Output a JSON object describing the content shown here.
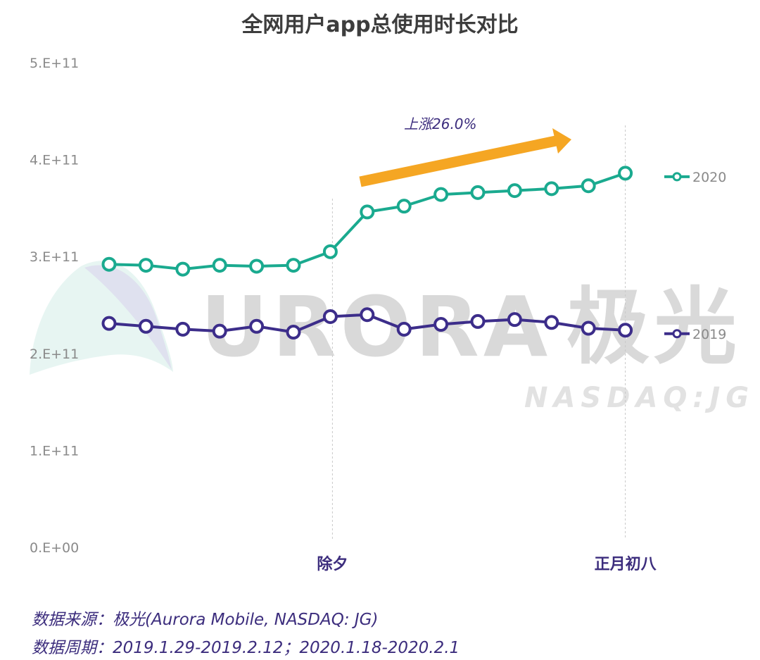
{
  "chart_data": {
    "type": "line",
    "title": "全网用户app总使用时长对比",
    "ylim": [
      0,
      500000000000
    ],
    "yticks": [
      "0.E+00",
      "1.E+11",
      "2.E+11",
      "3.E+11",
      "4.E+11",
      "5.E+11"
    ],
    "x": [
      1,
      2,
      3,
      4,
      5,
      6,
      7,
      8,
      9,
      10,
      11,
      12,
      13,
      14,
      15
    ],
    "x_markers": [
      {
        "x": 7,
        "label": "除夕"
      },
      {
        "x": 15,
        "label": "正月初八"
      }
    ],
    "series": [
      {
        "name": "2020",
        "color": "#1aaa8f",
        "values": [
          292000000000,
          291000000000,
          287000000000,
          291000000000,
          290000000000,
          291000000000,
          305000000000,
          346000000000,
          352000000000,
          364000000000,
          366000000000,
          368000000000,
          370000000000,
          373000000000,
          386000000000
        ]
      },
      {
        "name": "2019",
        "color": "#3c2d8a",
        "values": [
          231000000000,
          228000000000,
          225000000000,
          223000000000,
          228000000000,
          222000000000,
          238000000000,
          240000000000,
          225000000000,
          230000000000,
          233000000000,
          235000000000,
          232000000000,
          226000000000,
          224000000000
        ]
      }
    ],
    "annotation": {
      "text": "上涨26.0%",
      "color": "#f5a623"
    },
    "grid": false,
    "legend_placement": "right"
  },
  "watermark": {
    "brand": "URORA",
    "brand_cn": "极光",
    "ticker": "NASDAQ:JG"
  },
  "footer": {
    "source": "数据来源：极光(Aurora Mobile, NASDAQ: JG)",
    "period": "数据周期：2019.1.29-2019.2.12；2020.1.18-2020.2.1"
  }
}
